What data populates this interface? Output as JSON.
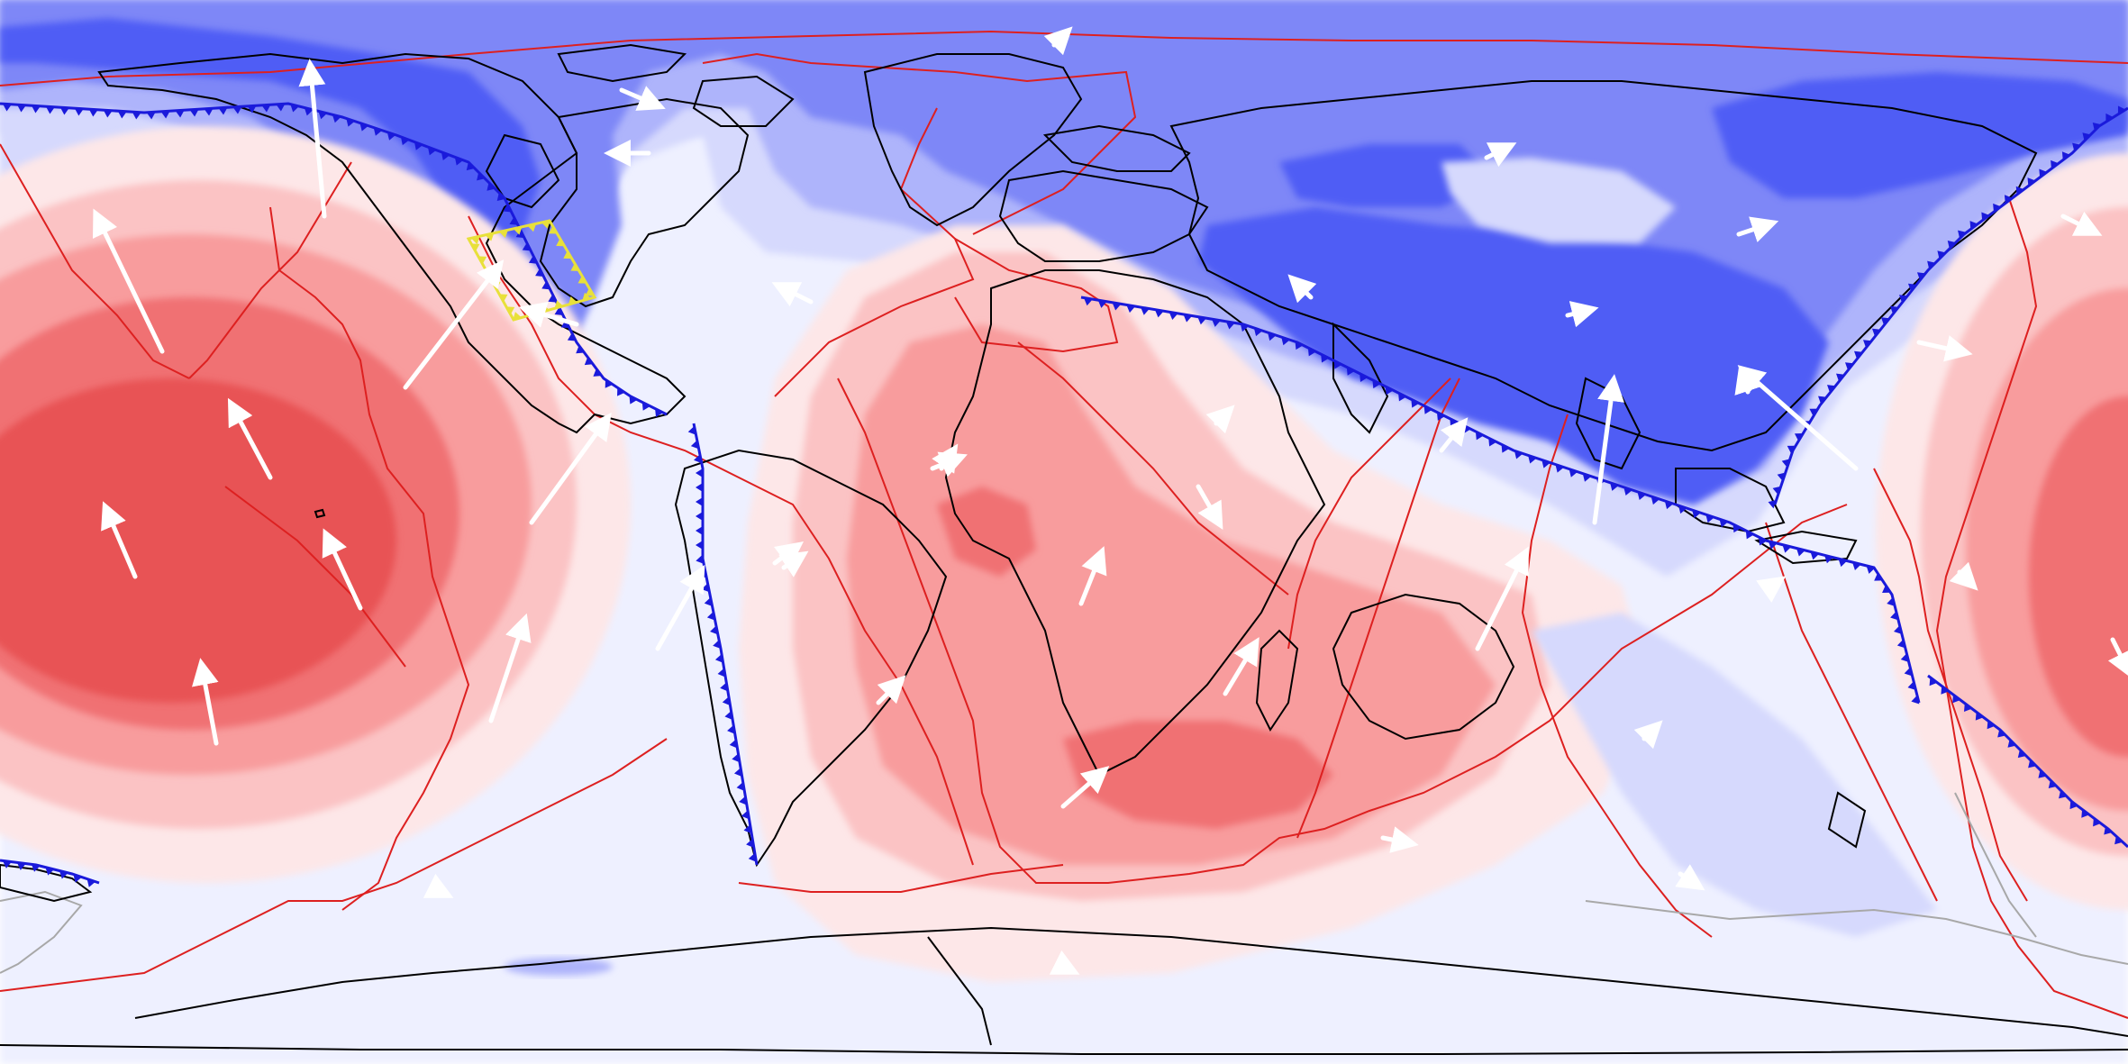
{
  "map": {
    "projection": "equirectangular-global",
    "field_colors": {
      "deep_blue": "#4f5df5",
      "blue": "#7e87f7",
      "mid_blue": "#aeb4fb",
      "light_blue": "#d6d9fd",
      "pale": "#eef0ff",
      "pale_red": "#fde7e8",
      "light_red": "#fbc3c4",
      "mid_red": "#f89c9d",
      "red": "#f07173",
      "deep_red": "#e85254"
    },
    "line_colors": {
      "coastline": "#000000",
      "plate_boundary": "#dd2020",
      "subduction_zone": "#1a1adb",
      "highlight_block": "#e8e03a",
      "fossil_boundary": "#a8a8a8",
      "velocity_arrow": "#ffffff"
    },
    "legend": []
  }
}
